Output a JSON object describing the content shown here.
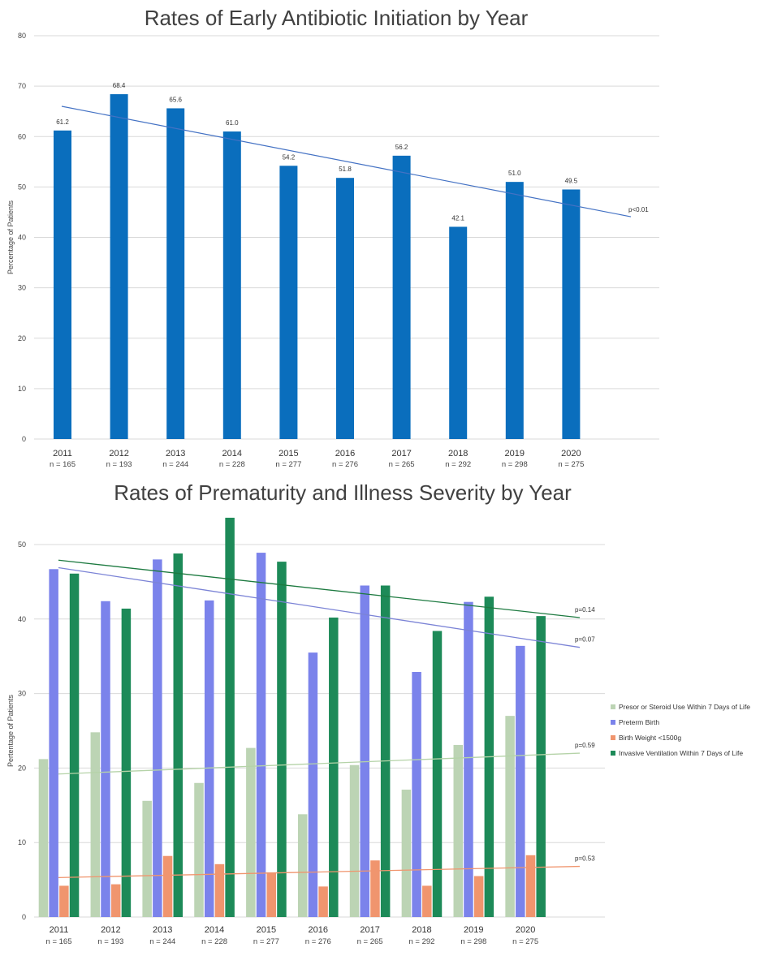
{
  "chart_data": [
    {
      "type": "bar",
      "title": "Rates of Early Antibiotic Initiation by Year",
      "ylabel": "Percentage of Patients",
      "ylim": [
        0,
        80
      ],
      "yticks": [
        0,
        10,
        20,
        30,
        40,
        50,
        60,
        70,
        80
      ],
      "grid": true,
      "categories": [
        "2011",
        "2012",
        "2013",
        "2014",
        "2015",
        "2016",
        "2017",
        "2018",
        "2019",
        "2020"
      ],
      "n_labels": [
        "n = 165",
        "n = 193",
        "n = 244",
        "n = 228",
        "n = 277",
        "n = 276",
        "n = 265",
        "n = 292",
        "n = 298",
        "n = 275"
      ],
      "series": [
        {
          "values": [
            61.2,
            68.4,
            65.6,
            61.0,
            54.2,
            51.8,
            56.2,
            42.1,
            51.0,
            49.5
          ],
          "data_labels": [
            "61.2",
            "68.4",
            "65.6",
            "61.0",
            "54.2",
            "51.8",
            "56.2",
            "42.1",
            "51.0",
            "49.5"
          ],
          "color": "#0a6ebd",
          "trend": {
            "start": 66.0,
            "end": 44.1,
            "color": "#4472c4",
            "label": "p<0.01"
          }
        }
      ]
    },
    {
      "type": "bar",
      "title": "Rates of Prematurity and Illness Severity by Year",
      "ylabel": "Pertentage of Patients",
      "ylim": [
        0,
        50
      ],
      "yticks": [
        0,
        10,
        20,
        30,
        40,
        50
      ],
      "grid": true,
      "legend_position": "right",
      "categories": [
        "2011",
        "2012",
        "2013",
        "2014",
        "2015",
        "2016",
        "2017",
        "2018",
        "2019",
        "2020"
      ],
      "n_labels": [
        "n = 165",
        "n = 193",
        "n = 244",
        "n = 228",
        "n = 277",
        "n = 276",
        "n = 265",
        "n = 292",
        "n = 298",
        "n = 275"
      ],
      "series": [
        {
          "name": "Presor or Steroid Use Within 7 Days of Life",
          "color": "#bcd4b4",
          "values": [
            21.2,
            24.8,
            15.6,
            18.0,
            22.7,
            13.8,
            20.4,
            17.1,
            23.1,
            27.0
          ],
          "trend": {
            "start": 19.2,
            "end": 22.0,
            "color": "#b5d3a8",
            "label": "p=0.59"
          }
        },
        {
          "name": "Preterm Birth",
          "color": "#7b83eb",
          "values": [
            46.7,
            42.4,
            48.0,
            42.5,
            48.9,
            35.5,
            44.5,
            32.9,
            42.3,
            36.4
          ],
          "trend": {
            "start": 46.9,
            "end": 36.2,
            "color": "#7b83d6",
            "label": "p=0.07"
          }
        },
        {
          "name": "Birth Weight <1500g",
          "color": "#f0956e",
          "values": [
            4.2,
            4.4,
            8.2,
            7.1,
            6.0,
            4.1,
            7.6,
            4.2,
            5.5,
            8.3
          ],
          "trend": {
            "start": 5.3,
            "end": 6.8,
            "color": "#f0956e",
            "label": "p=0.53"
          }
        },
        {
          "name": "Invasive Ventilation Within 7 Days of Life",
          "color": "#1d8a58",
          "values": [
            46.1,
            41.4,
            48.8,
            53.6,
            47.7,
            40.2,
            44.5,
            38.4,
            43.0,
            40.4
          ],
          "trend": {
            "start": 47.9,
            "end": 40.2,
            "color": "#1d7a40",
            "label": "p=0.14"
          }
        }
      ]
    }
  ]
}
